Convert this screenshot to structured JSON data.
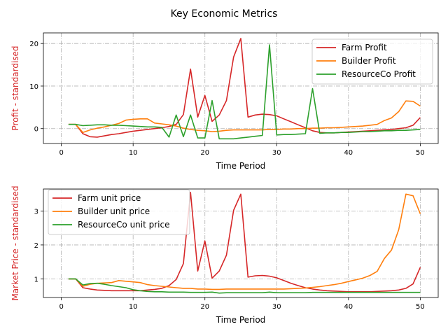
{
  "title": "Key Economic Metrics",
  "chart_data": [
    {
      "type": "line",
      "xlabel": "Time Period",
      "ylabel": "Profit - standardised",
      "xlim": [
        -2.5,
        52.5
      ],
      "ylim": [
        -3.5,
        22.5
      ],
      "xticks": [
        0,
        10,
        20,
        30,
        40,
        50
      ],
      "yticks": [
        0,
        10,
        20
      ],
      "grid": true,
      "legend_position": "top-right",
      "series": [
        {
          "name": "Farm Profit",
          "color": "#d62728",
          "x": [
            1,
            2,
            3,
            4,
            5,
            6,
            7,
            8,
            9,
            10,
            11,
            12,
            13,
            14,
            15,
            16,
            17,
            18,
            19,
            20,
            21,
            22,
            23,
            24,
            25,
            26,
            27,
            28,
            29,
            30,
            31,
            32,
            33,
            34,
            35,
            36,
            37,
            38,
            39,
            40,
            41,
            42,
            43,
            44,
            45,
            46,
            47,
            48,
            49,
            50
          ],
          "y": [
            1.0,
            1.0,
            -1.2,
            -1.9,
            -2.0,
            -1.7,
            -1.4,
            -1.2,
            -0.9,
            -0.6,
            -0.4,
            -0.2,
            0.0,
            0.2,
            0.5,
            1.0,
            3.3,
            14.0,
            2.7,
            7.8,
            1.7,
            3.2,
            6.6,
            16.8,
            21.2,
            2.7,
            3.2,
            3.4,
            3.3,
            3.0,
            2.3,
            1.6,
            0.9,
            0.2,
            -0.5,
            -0.9,
            -1.0,
            -1.0,
            -0.9,
            -0.8,
            -0.7,
            -0.6,
            -0.5,
            -0.4,
            -0.3,
            -0.2,
            0.0,
            0.2,
            0.8,
            2.6
          ]
        },
        {
          "name": "Builder Profit",
          "color": "#ff7f0e",
          "x": [
            1,
            2,
            3,
            4,
            5,
            6,
            7,
            8,
            9,
            10,
            11,
            12,
            13,
            14,
            15,
            16,
            17,
            18,
            19,
            20,
            21,
            22,
            23,
            24,
            25,
            26,
            27,
            28,
            29,
            30,
            31,
            32,
            33,
            34,
            35,
            36,
            37,
            38,
            39,
            40,
            41,
            42,
            43,
            44,
            45,
            46,
            47,
            48,
            49,
            50
          ],
          "y": [
            1.0,
            1.0,
            -0.9,
            -0.3,
            0.1,
            0.4,
            0.8,
            1.2,
            2.0,
            2.2,
            2.3,
            2.3,
            1.3,
            1.1,
            0.9,
            0.6,
            0.1,
            -0.2,
            -0.4,
            -0.5,
            -0.7,
            -0.6,
            -0.4,
            -0.3,
            -0.3,
            -0.3,
            -0.3,
            -0.3,
            -0.2,
            -0.2,
            -0.1,
            -0.1,
            0.0,
            0.0,
            0.1,
            0.1,
            0.2,
            0.2,
            0.3,
            0.4,
            0.5,
            0.6,
            0.8,
            1.0,
            1.9,
            2.5,
            4.0,
            6.5,
            6.4,
            5.3
          ]
        },
        {
          "name": "ResourceCo Profit",
          "color": "#2ca02c",
          "x": [
            1,
            2,
            3,
            4,
            5,
            6,
            7,
            8,
            9,
            10,
            11,
            12,
            13,
            14,
            15,
            16,
            17,
            18,
            19,
            20,
            21,
            22,
            23,
            24,
            25,
            26,
            27,
            28,
            29,
            30,
            31,
            32,
            33,
            34,
            35,
            36,
            37,
            38,
            39,
            40,
            41,
            42,
            43,
            44,
            45,
            46,
            47,
            48,
            49,
            50
          ],
          "y": [
            1.0,
            1.0,
            0.7,
            0.8,
            0.9,
            0.9,
            0.8,
            0.8,
            0.7,
            0.6,
            0.5,
            0.4,
            0.4,
            0.3,
            -2.0,
            3.2,
            -1.9,
            3.2,
            -2.2,
            -2.2,
            6.6,
            -2.4,
            -2.4,
            -2.4,
            -2.2,
            -2.0,
            -1.8,
            -1.6,
            19.7,
            -1.5,
            -1.4,
            -1.4,
            -1.3,
            -1.2,
            9.4,
            -1.1,
            -1.0,
            -1.0,
            -0.9,
            -0.9,
            -0.8,
            -0.7,
            -0.7,
            -0.6,
            -0.5,
            -0.5,
            -0.4,
            -0.4,
            -0.3,
            -0.2
          ]
        }
      ]
    },
    {
      "type": "line",
      "xlabel": "Time Period",
      "ylabel": "Market Price - standardised",
      "xlim": [
        -2.5,
        52.5
      ],
      "ylim": [
        0.45,
        3.65
      ],
      "xticks": [
        0,
        10,
        20,
        30,
        40,
        50
      ],
      "yticks": [
        1,
        2,
        3
      ],
      "grid": true,
      "legend_position": "top-left",
      "series": [
        {
          "name": "Farm unit price",
          "color": "#d62728",
          "x": [
            1,
            2,
            3,
            4,
            5,
            6,
            7,
            8,
            9,
            10,
            11,
            12,
            13,
            14,
            15,
            16,
            17,
            18,
            19,
            20,
            21,
            22,
            23,
            24,
            25,
            26,
            27,
            28,
            29,
            30,
            31,
            32,
            33,
            34,
            35,
            36,
            37,
            38,
            39,
            40,
            41,
            42,
            43,
            44,
            45,
            46,
            47,
            48,
            49,
            50
          ],
          "y": [
            1.0,
            1.0,
            0.74,
            0.7,
            0.67,
            0.66,
            0.65,
            0.65,
            0.65,
            0.65,
            0.65,
            0.67,
            0.69,
            0.72,
            0.8,
            0.98,
            1.45,
            3.55,
            1.23,
            2.12,
            1.02,
            1.23,
            1.7,
            3.02,
            3.5,
            1.05,
            1.09,
            1.1,
            1.08,
            1.03,
            0.95,
            0.87,
            0.8,
            0.74,
            0.7,
            0.67,
            0.65,
            0.64,
            0.63,
            0.62,
            0.62,
            0.62,
            0.62,
            0.63,
            0.64,
            0.65,
            0.67,
            0.72,
            0.85,
            1.34
          ]
        },
        {
          "name": "Builder unit price",
          "color": "#ff7f0e",
          "x": [
            1,
            2,
            3,
            4,
            5,
            6,
            7,
            8,
            9,
            10,
            11,
            12,
            13,
            14,
            15,
            16,
            17,
            18,
            19,
            20,
            21,
            22,
            23,
            24,
            25,
            26,
            27,
            28,
            29,
            30,
            31,
            32,
            33,
            34,
            35,
            36,
            37,
            38,
            39,
            40,
            41,
            42,
            43,
            44,
            45,
            46,
            47,
            48,
            49,
            50
          ],
          "y": [
            1.0,
            1.0,
            0.78,
            0.84,
            0.87,
            0.88,
            0.89,
            0.95,
            0.93,
            0.91,
            0.89,
            0.83,
            0.8,
            0.78,
            0.76,
            0.74,
            0.72,
            0.72,
            0.7,
            0.7,
            0.69,
            0.69,
            0.7,
            0.7,
            0.7,
            0.7,
            0.7,
            0.7,
            0.7,
            0.7,
            0.7,
            0.71,
            0.72,
            0.73,
            0.75,
            0.77,
            0.8,
            0.83,
            0.87,
            0.92,
            0.97,
            1.02,
            1.1,
            1.22,
            1.6,
            1.85,
            2.45,
            3.5,
            3.45,
            2.92
          ]
        },
        {
          "name": "ResourceCo unit price",
          "color": "#2ca02c",
          "x": [
            1,
            2,
            3,
            4,
            5,
            6,
            7,
            8,
            9,
            10,
            11,
            12,
            13,
            14,
            15,
            16,
            17,
            18,
            19,
            20,
            21,
            22,
            23,
            24,
            25,
            26,
            27,
            28,
            29,
            30,
            31,
            32,
            33,
            34,
            35,
            36,
            37,
            38,
            39,
            40,
            41,
            42,
            43,
            44,
            45,
            46,
            47,
            48,
            49,
            50
          ],
          "y": [
            1.0,
            1.0,
            0.82,
            0.86,
            0.87,
            0.84,
            0.8,
            0.77,
            0.74,
            0.68,
            0.65,
            0.63,
            0.62,
            0.62,
            0.61,
            0.61,
            0.61,
            0.6,
            0.6,
            0.6,
            0.61,
            0.58,
            0.59,
            0.59,
            0.59,
            0.59,
            0.59,
            0.59,
            0.61,
            0.59,
            0.59,
            0.59,
            0.59,
            0.59,
            0.6,
            0.6,
            0.6,
            0.6,
            0.6,
            0.6,
            0.6,
            0.6,
            0.6,
            0.6,
            0.6,
            0.6,
            0.6,
            0.6,
            0.6,
            0.6
          ]
        }
      ]
    }
  ]
}
